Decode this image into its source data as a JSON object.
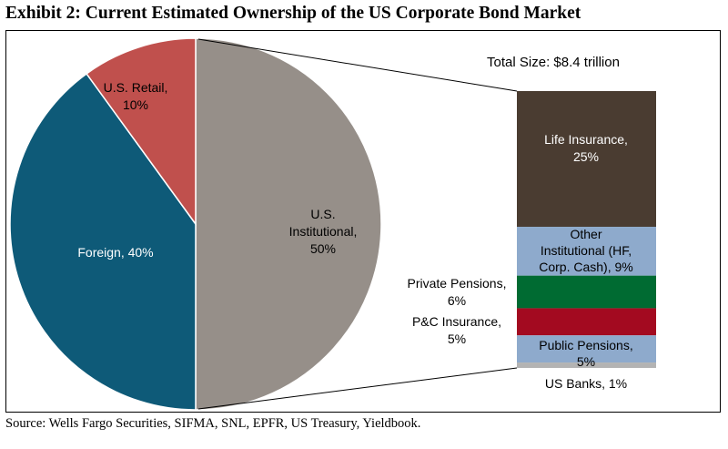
{
  "title": "Exhibit 2: Current Estimated Ownership of the US Corporate Bond Market",
  "source": "Source: Wells Fargo Securities, SIFMA, SNL, EPFR, US Treasury, Yieldbook.",
  "colors": {
    "institutional": "#968f89",
    "foreign": "#0e5a78",
    "retail": "#c0504d",
    "life_insurance": "#4a3c31",
    "other_institutional": "#8eaacc",
    "private_pensions": "#006b32",
    "pc_insurance": "#a30a20",
    "public_pensions": "#8eaacc",
    "us_banks": "#b3b3b3"
  },
  "chart_data": [
    {
      "type": "pie",
      "units": "%",
      "annotation": "Total Size: $8.4 trillion",
      "slices": [
        {
          "label": "U.S. Institutional, 50%",
          "value": 50,
          "color": "#968f89"
        },
        {
          "label": "Foreign, 40%",
          "value": 40,
          "color": "#0e5a78"
        },
        {
          "label": "U.S. Retail, 10%",
          "value": 10,
          "color": "#c0504d"
        }
      ]
    },
    {
      "type": "bar",
      "stacked": true,
      "units": "%",
      "segments": [
        {
          "label": "Life Insurance, 25%",
          "value": 25,
          "color": "#4a3c31"
        },
        {
          "label": "Other Institutional (HF, Corp. Cash), 9%",
          "value": 9,
          "color": "#8eaacc"
        },
        {
          "label": "Private Pensions, 6%",
          "value": 6,
          "color": "#006b32"
        },
        {
          "label": "P&C Insurance, 5%",
          "value": 5,
          "color": "#a30a20"
        },
        {
          "label": "Public Pensions, 5%",
          "value": 5,
          "color": "#8eaacc"
        },
        {
          "label": "US Banks, 1%",
          "value": 1,
          "color": "#b3b3b3"
        }
      ]
    }
  ]
}
